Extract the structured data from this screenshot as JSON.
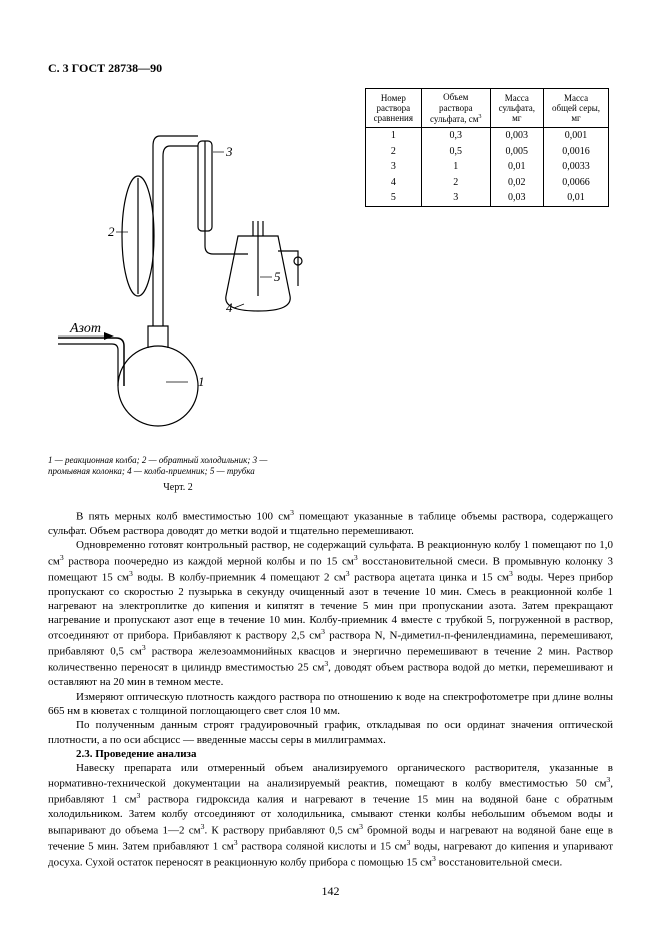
{
  "header": "С. 3 ГОСТ 28738—90",
  "table": {
    "columns": [
      "Номер\nраствора\nсравнения",
      "Объем\nраствора\nсульфата, см³",
      "Масса\nсульфата,\nмг",
      "Масса\nобщей серы,\nмг"
    ],
    "rows": [
      [
        "1",
        "0,3",
        "0,003",
        "0,001"
      ],
      [
        "2",
        "0,5",
        "0,005",
        "0,0016"
      ],
      [
        "3",
        "1",
        "0,01",
        "0,0033"
      ],
      [
        "4",
        "2",
        "0,02",
        "0,0066"
      ],
      [
        "5",
        "3",
        "0,03",
        "0,01"
      ]
    ]
  },
  "figure": {
    "gas_label": "Азот",
    "parts": {
      "1": "1",
      "2": "2",
      "3": "3",
      "4": "4",
      "5": "5"
    },
    "caption": "1 — реакционная колба; 2 — обратный холодильник; 3 — промывная колонка; 4 — колба-приемник; 5 — трубка",
    "label": "Черт. 2"
  },
  "body": {
    "p1": "В пять мерных колб вместимостью 100 см³ помещают указанные в таблице объемы раствора, содержащего сульфат. Объем раствора доводят до метки водой и тщательно перемешивают.",
    "p2": "Одновременно готовят контрольный раствор, не содержащий сульфата. В реакционную колбу 1 помещают по 1,0 см³ раствора поочередно из каждой мерной колбы и по 15 см³ восстановительной смеси. В промывную колонку 3 помещают 15 см³ воды. В колбу-приемник 4 помещают 2 см³ раствора ацетата цинка и 15 см³ воды. Через прибор пропускают со скоростью 2 пузырька в секунду очищенный азот в течение 10 мин. Смесь в реакционной колбе 1 нагревают на электроплитке до кипения и кипятят в течение 5 мин при пропускании азота. Затем прекращают нагревание и пропускают азот еще в течение 10 мин. Колбу-приемник 4 вместе с трубкой 5, погруженной в раствор, отсоединяют от прибора. Прибавляют к раствору 2,5 см³ раствора N, N-диметил-п-фенилендиамина, перемешивают, прибавляют 0,5 см³ раствора железоаммонийных квасцов и энергично перемешивают в течение 2 мин. Раствор количественно переносят в цилиндр вместимостью 25 см³, доводят объем раствора водой до метки, перемешивают и оставляют на 20 мин в темном месте.",
    "p3": "Измеряют оптическую плотность каждого раствора по отношению к воде на спектрофотометре при длине волны 665 нм в кюветах с толщиной поглощающего свет слоя 10 мм.",
    "p4": "По полученным данным строят градуировочный график, откладывая по оси ординат значения оптической плотности, а по оси абсцисс — введенные массы серы в миллиграммах.",
    "p5_head": "2.3. Проведение анализа",
    "p5": "Навеску препарата или отмеренный объем анализируемого органического растворителя, указанные в нормативно-технической документации на анализируемый реактив, помещают в колбу вместимостью 50 см³, прибавляют 1 см³ раствора гидроксида калия и нагревают в течение 15 мин на водяной бане с обратным холодильником. Затем колбу отсоединяют от холодильника, смывают стенки колбы небольшим объемом воды и выпаривают до объема 1—2 см³. К раствору прибавляют 0,5 см³ бромной воды и нагревают на водяной бане еще в течение 5 мин. Затем прибавляют 1 см³ раствора соляной кислоты и 15 см³ воды, нагревают до кипения и упаривают досуха. Сухой остаток переносят в реакционную колбу прибора с помощью 15 см³ восстановительной смеси."
  },
  "pageNumber": "142"
}
